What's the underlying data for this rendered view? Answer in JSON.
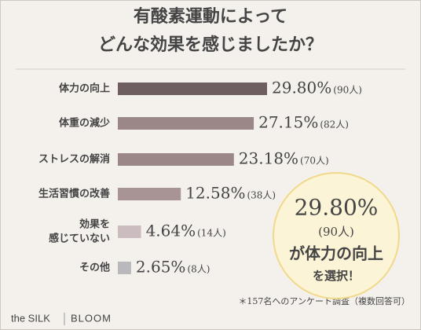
{
  "chart_data": {
    "type": "bar",
    "title": [
      "有酸素運動によって",
      "どんな効果を感じましたか？"
    ],
    "categories": [
      [
        "体力の向上"
      ],
      [
        "体重の減少"
      ],
      [
        "ストレスの解消"
      ],
      [
        "生活習慣の改善"
      ],
      [
        "効果を",
        "感じていない"
      ],
      [
        "その他"
      ]
    ],
    "values": [
      29.8,
      27.15,
      23.18,
      12.58,
      4.64,
      2.65
    ],
    "value_labels": [
      "29.80%",
      "27.15%",
      "23.18%",
      "12.58%",
      "4.64%",
      "2.65%"
    ],
    "counts": [
      90,
      82,
      70,
      38,
      14,
      8
    ],
    "count_labels": [
      "(90人)",
      "(82人)",
      "(70人)",
      "(38人)",
      "(14人)",
      "(8人)"
    ],
    "colors": [
      "#6e5e5f",
      "#9b8788",
      "#9b8788",
      "#a89495",
      "#cbbcbf",
      "#b9b9bb"
    ],
    "label_color": "#d0883b",
    "callout": [
      "29.80%",
      "(90人)",
      "が体力の向上",
      "を選択！"
    ],
    "footnote": "＊157名へのアンケート調査（複数回答可）",
    "brand": [
      "the SILK",
      "BLOOM"
    ]
  }
}
